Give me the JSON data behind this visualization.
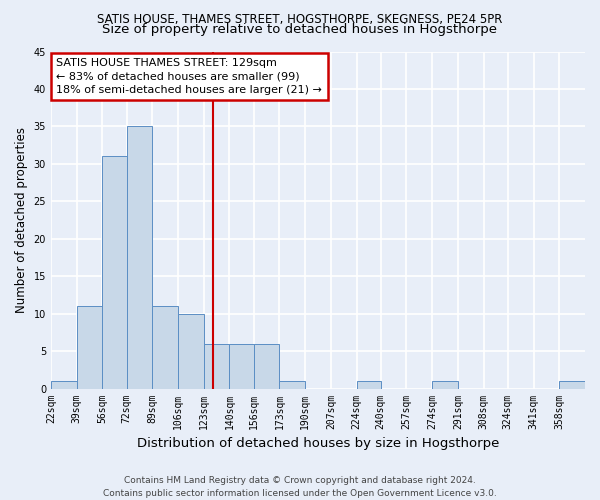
{
  "title": "SATIS HOUSE, THAMES STREET, HOGSTHORPE, SKEGNESS, PE24 5PR",
  "subtitle": "Size of property relative to detached houses in Hogsthorpe",
  "xlabel": "Distribution of detached houses by size in Hogsthorpe",
  "ylabel": "Number of detached properties",
  "bin_labels": [
    "22sqm",
    "39sqm",
    "56sqm",
    "72sqm",
    "89sqm",
    "106sqm",
    "123sqm",
    "140sqm",
    "156sqm",
    "173sqm",
    "190sqm",
    "207sqm",
    "224sqm",
    "240sqm",
    "257sqm",
    "274sqm",
    "291sqm",
    "308sqm",
    "324sqm",
    "341sqm",
    "358sqm"
  ],
  "bin_edges": [
    22,
    39,
    56,
    72,
    89,
    106,
    123,
    140,
    156,
    173,
    190,
    207,
    224,
    240,
    257,
    274,
    291,
    308,
    324,
    341,
    358,
    375
  ],
  "counts": [
    1,
    11,
    31,
    35,
    11,
    10,
    6,
    6,
    6,
    1,
    0,
    0,
    1,
    0,
    0,
    1,
    0,
    0,
    0,
    0,
    1
  ],
  "bar_color": "#c8d8e8",
  "bar_edge_color": "#5b8ec4",
  "property_value": 129,
  "vline_color": "#cc0000",
  "annotation_line1": "SATIS HOUSE THAMES STREET: 129sqm",
  "annotation_line2": "← 83% of detached houses are smaller (99)",
  "annotation_line3": "18% of semi-detached houses are larger (21) →",
  "annotation_box_color": "#cc0000",
  "ylim": [
    0,
    45
  ],
  "yticks": [
    0,
    5,
    10,
    15,
    20,
    25,
    30,
    35,
    40,
    45
  ],
  "footer": "Contains HM Land Registry data © Crown copyright and database right 2024.\nContains public sector information licensed under the Open Government Licence v3.0.",
  "bg_color": "#e8eef8",
  "plot_bg_color": "#e8eef8",
  "grid_color": "#ffffff",
  "title_fontsize": 8.5,
  "subtitle_fontsize": 9.5,
  "axis_label_fontsize": 8.5,
  "tick_fontsize": 7,
  "annotation_fontsize": 8,
  "footer_fontsize": 6.5
}
